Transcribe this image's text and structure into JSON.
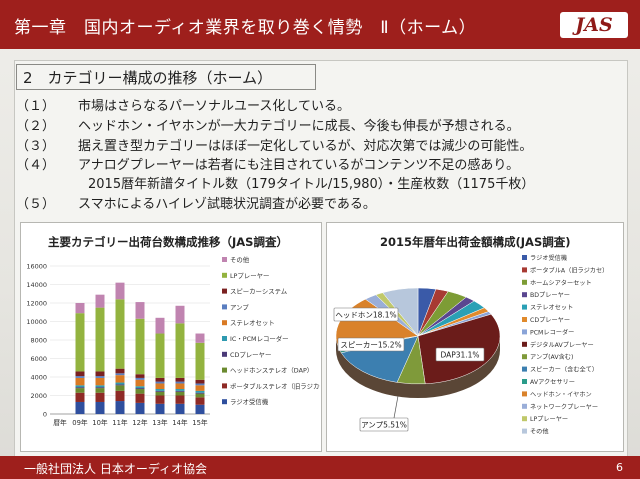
{
  "title": "第一章　国内オーディオ業界を取り巻く情勢　Ⅱ（ホーム）",
  "logo_text": "JAS",
  "subtitle": "2　カテゴリー構成の推移（ホーム）",
  "items": [
    {
      "num": "（１）",
      "text": "市場はさらなるパーソナルユース化している。"
    },
    {
      "num": "（２）",
      "text": "ヘッドホン・イヤホンが一大カテゴリーに成長、今後も伸長が予想される。"
    },
    {
      "num": "（３）",
      "text": "据え置き型カテゴリーはほぼ一定化しているが、対応次第では減少の可能性。"
    },
    {
      "num": "（４）",
      "text": "アナログプレーヤーは若者にも注目されているがコンテンツ不足の感あり。"
    },
    {
      "num": "",
      "text": "2015暦年新譜タイトル数（179タイトル/15,980）・生産枚数（1175千枚）"
    },
    {
      "num": "（５）",
      "text": "スマホによるハイレゾ試聴状況調査が必要である。"
    }
  ],
  "footer": "一般社団法人 日本オーディオ協会",
  "page_number": "6",
  "colors": {
    "accent": "#9e1f1c"
  },
  "chart_data": [
    {
      "type": "bar",
      "stacked": true,
      "title": "主要カテゴリー出荷台数構成推移（JAS調査）",
      "categories": [
        "暦年",
        "09年",
        "10年",
        "11年",
        "12年",
        "13年",
        "14年",
        "15年"
      ],
      "ylim": [
        0,
        16000
      ],
      "yticks": [
        "0",
        "2000",
        "4000",
        "6000",
        "8000",
        "10000",
        "12000",
        "14000",
        "16000"
      ],
      "series": [
        {
          "name": "ラジオ受信機",
          "color": "#2f4f9e",
          "values": [
            0,
            1300,
            1300,
            1400,
            1200,
            1100,
            1100,
            1000
          ]
        },
        {
          "name": "ポータブルステレオ（旧ラジカセ）",
          "color": "#8e2a26",
          "values": [
            0,
            1000,
            1000,
            1100,
            1000,
            900,
            900,
            800
          ]
        },
        {
          "name": "ヘッドホンステレオ（DAP）",
          "color": "#6b8a2f",
          "values": [
            0,
            500,
            500,
            600,
            500,
            400,
            400,
            400
          ]
        },
        {
          "name": "CDプレーヤー",
          "color": "#4b3a78",
          "values": [
            0,
            100,
            100,
            100,
            100,
            100,
            100,
            100
          ]
        },
        {
          "name": "IC・PCMレコーダー",
          "color": "#2f9ab0",
          "values": [
            0,
            200,
            200,
            200,
            200,
            200,
            200,
            200
          ]
        },
        {
          "name": "ステレオセット",
          "color": "#d97a24",
          "values": [
            0,
            800,
            800,
            800,
            700,
            600,
            600,
            600
          ]
        },
        {
          "name": "アンプ",
          "color": "#5a7ec0",
          "values": [
            0,
            200,
            200,
            200,
            200,
            200,
            200,
            200
          ]
        },
        {
          "name": "スピーカーシステム",
          "color": "#7a2020",
          "values": [
            0,
            500,
            500,
            500,
            400,
            400,
            400,
            400
          ]
        },
        {
          "name": "LPプレーヤー",
          "color": "#93b33f",
          "values": [
            0,
            6300,
            6900,
            7500,
            6000,
            4800,
            5900,
            4000
          ]
        },
        {
          "name": "その他",
          "color": "#c084b0",
          "values": [
            0,
            1100,
            1400,
            1800,
            1800,
            1700,
            1900,
            1000
          ]
        }
      ]
    },
    {
      "type": "pie",
      "title": "2015年暦年出荷金額構成(JAS調査)",
      "slices": [
        {
          "label": "ラジオ受信機",
          "value": 3.5,
          "color": "#3a5aa8"
        },
        {
          "label": "ポータブルA（旧ラジカセ）",
          "value": 2.5,
          "color": "#a73a33"
        },
        {
          "label": "ホームシアターセット",
          "value": 4.0,
          "color": "#7d9c35"
        },
        {
          "label": "BDプレーヤー",
          "value": 2.0,
          "color": "#5a4690"
        },
        {
          "label": "ステレオセット",
          "value": 3.0,
          "color": "#2aa0b5"
        },
        {
          "label": "CDプレーヤー",
          "value": 1.5,
          "color": "#e08a2c"
        },
        {
          "label": "PCMレコーダー",
          "value": 1.0,
          "color": "#8aa4d8"
        },
        {
          "label": "デジタルAVプレーヤー",
          "value": 31.1,
          "color": "#6b1c1a"
        },
        {
          "label": "アンプ(AV含む)",
          "value": 5.51,
          "color": "#7f9a3a"
        },
        {
          "label": "スピーカー（含む全て）",
          "value": 15.2,
          "color": "#3c7fb0"
        },
        {
          "label": "AVアクセサリー",
          "value": 1.5,
          "color": "#2a9c8a"
        },
        {
          "label": "ヘッドホン・イヤホン",
          "value": 18.1,
          "color": "#d9822b"
        },
        {
          "label": "ネットワークプレーヤー",
          "value": 2.5,
          "color": "#9aaed8"
        },
        {
          "label": "LPプレーヤー",
          "value": 1.5,
          "color": "#c0c86a"
        },
        {
          "label": "その他",
          "value": 7.09,
          "color": "#b7c7dc"
        }
      ],
      "annotations": [
        "ヘッドホン18.1%",
        "スピーカー15.2%",
        "DAP31.1%",
        "アンプ5.51%"
      ]
    }
  ]
}
